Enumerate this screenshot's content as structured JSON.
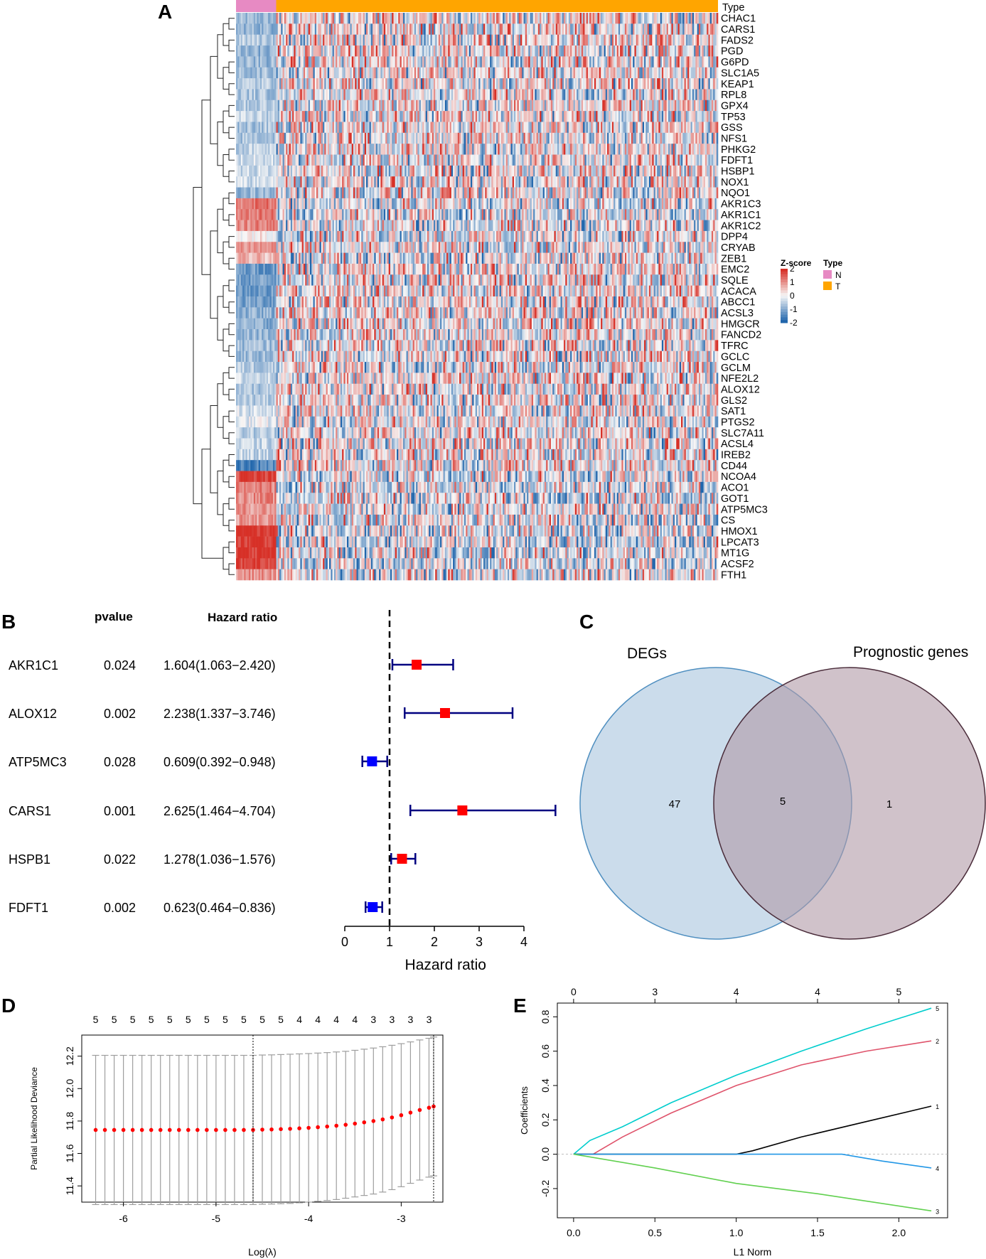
{
  "panels": {
    "A": "A",
    "B": "B",
    "C": "C",
    "D": "D",
    "E": "E"
  },
  "chart_data": [
    {
      "type": "heatmap",
      "panel": "A",
      "title": "",
      "annotation_label": "Type",
      "groups": [
        {
          "name": "N",
          "color": "#e78ac3",
          "n_samples": 25
        },
        {
          "name": "T",
          "color": "#ffa500",
          "n_samples": 275
        }
      ],
      "genes": [
        "CHAC1",
        "CARS1",
        "FADS2",
        "PGD",
        "G6PD",
        "SLC1A5",
        "KEAP1",
        "RPL8",
        "GPX4",
        "TP53",
        "GSS",
        "NFS1",
        "PHKG2",
        "FDFT1",
        "HSBP1",
        "NOX1",
        "NQO1",
        "AKR1C3",
        "AKR1C1",
        "AKR1C2",
        "DPP4",
        "CRYAB",
        "ZEB1",
        "EMC2",
        "SQLE",
        "ACACA",
        "ABCC1",
        "ACSL3",
        "HMGCR",
        "FANCD2",
        "TFRC",
        "GCLC",
        "GCLM",
        "NFE2L2",
        "ALOX12",
        "GLS2",
        "SAT1",
        "PTGS2",
        "SLC7A11",
        "ACSL4",
        "IREB2",
        "CD44",
        "NCOA4",
        "ACO1",
        "GOT1",
        "ATP5MC3",
        "CS",
        "HMOX1",
        "LPCAT3",
        "MT1G",
        "ACSF2",
        "FTH1"
      ],
      "normal_group_mean_z": [
        -0.9,
        -0.9,
        -0.6,
        -1.0,
        -0.9,
        -0.8,
        -0.6,
        -0.7,
        -0.6,
        -0.5,
        -0.7,
        -0.7,
        -0.5,
        -0.4,
        -0.4,
        -0.4,
        -0.9,
        1.3,
        1.2,
        1.1,
        0.2,
        1.0,
        0.6,
        -1.3,
        -1.2,
        -1.3,
        -1.2,
        -1.0,
        -1.0,
        -0.9,
        -0.8,
        -0.8,
        -0.6,
        -0.4,
        -0.7,
        -0.6,
        -0.3,
        -0.2,
        -0.6,
        -0.5,
        -0.5,
        -1.6,
        1.8,
        1.2,
        1.1,
        1.0,
        0.9,
        2.0,
        2.0,
        2.0,
        1.9,
        1.0
      ],
      "color_scale": {
        "title": "Z-score",
        "min": -2,
        "max": 2,
        "ticks": [
          "2",
          "1",
          "0",
          "-1",
          "-2"
        ],
        "low": "#2166ac",
        "mid": "#f7f7f7",
        "high": "#d73027"
      },
      "legend_title": "Type"
    },
    {
      "type": "forest",
      "panel": "B",
      "column_headers": {
        "pvalue": "pvalue",
        "hr": "Hazard ratio"
      },
      "rows": [
        {
          "gene": "AKR1C1",
          "pvalue": "0.024",
          "hr_text": "1.604(1.063−2.420)",
          "hr": 1.604,
          "low": 1.063,
          "high": 2.42,
          "color": "#ff0000"
        },
        {
          "gene": "ALOX12",
          "pvalue": "0.002",
          "hr_text": "2.238(1.337−3.746)",
          "hr": 2.238,
          "low": 1.337,
          "high": 3.746,
          "color": "#ff0000"
        },
        {
          "gene": "ATP5MC3",
          "pvalue": "0.028",
          "hr_text": "0.609(0.392−0.948)",
          "hr": 0.609,
          "low": 0.392,
          "high": 0.948,
          "color": "#0000ff"
        },
        {
          "gene": "CARS1",
          "pvalue": "0.001",
          "hr_text": "2.625(1.464−4.704)",
          "hr": 2.625,
          "low": 1.464,
          "high": 4.704,
          "color": "#ff0000"
        },
        {
          "gene": "HSPB1",
          "pvalue": "0.022",
          "hr_text": "1.278(1.036−1.576)",
          "hr": 1.278,
          "low": 1.036,
          "high": 1.576,
          "color": "#ff0000"
        },
        {
          "gene": "FDFT1",
          "pvalue": "0.002",
          "hr_text": "0.623(0.464−0.836)",
          "hr": 0.623,
          "low": 0.464,
          "high": 0.836,
          "color": "#0000ff"
        }
      ],
      "ci_color": "#000080",
      "xlim": [
        0,
        4
      ],
      "xticks": [
        0,
        1,
        2,
        3,
        4
      ],
      "reference_line": 1,
      "xlabel": "Hazard ratio"
    },
    {
      "type": "venn",
      "panel": "C",
      "sets": [
        {
          "name": "DEGs",
          "only": "47",
          "fill": "#a9c4dd",
          "stroke": "#4f8fc0"
        },
        {
          "name": "Prognostic genes",
          "only": "1",
          "fill": "#b09aa6",
          "stroke": "#4a2c3a"
        }
      ],
      "intersection": "5"
    },
    {
      "type": "scatter",
      "panel": "D",
      "xlabel": "Log(λ)",
      "ylabel": "Partial Likelihood Deviance",
      "xlim": [
        -6.45,
        -2.55
      ],
      "ylim": [
        11.3,
        12.33
      ],
      "xticks": [
        -6,
        -5,
        -4,
        -3
      ],
      "yticks": [
        11.4,
        11.6,
        11.8,
        12.0,
        12.2
      ],
      "top_counts": [
        "5",
        "5",
        "5",
        "5",
        "5",
        "5",
        "5",
        "5",
        "5",
        "5",
        "5",
        "4",
        "4",
        "4",
        "4",
        "3",
        "3",
        "3",
        "3"
      ],
      "top_count_positions": [
        -6.3,
        -6.1,
        -5.9,
        -5.7,
        -5.5,
        -5.3,
        -5.1,
        -4.9,
        -4.7,
        -4.5,
        -4.3,
        -4.1,
        -3.9,
        -3.7,
        -3.5,
        -3.3,
        -3.1,
        -2.9,
        -2.7
      ],
      "log_lambda": [
        -6.3,
        -6.2,
        -6.1,
        -6.0,
        -5.9,
        -5.8,
        -5.7,
        -5.6,
        -5.5,
        -5.4,
        -5.3,
        -5.2,
        -5.1,
        -5.0,
        -4.9,
        -4.8,
        -4.7,
        -4.6,
        -4.5,
        -4.4,
        -4.3,
        -4.2,
        -4.1,
        -4.0,
        -3.9,
        -3.8,
        -3.7,
        -3.6,
        -3.5,
        -3.4,
        -3.3,
        -3.2,
        -3.1,
        -3.0,
        -2.9,
        -2.8,
        -2.7,
        -2.65
      ],
      "deviance": [
        11.745,
        11.745,
        11.745,
        11.745,
        11.745,
        11.745,
        11.745,
        11.745,
        11.745,
        11.745,
        11.745,
        11.745,
        11.745,
        11.745,
        11.745,
        11.745,
        11.745,
        11.745,
        11.747,
        11.748,
        11.75,
        11.752,
        11.755,
        11.758,
        11.762,
        11.766,
        11.771,
        11.777,
        11.784,
        11.792,
        11.8,
        11.81,
        11.822,
        11.836,
        11.852,
        11.868,
        11.882,
        11.89
      ],
      "upper": [
        12.205,
        12.205,
        12.205,
        12.205,
        12.205,
        12.205,
        12.205,
        12.205,
        12.205,
        12.205,
        12.205,
        12.205,
        12.205,
        12.205,
        12.205,
        12.205,
        12.205,
        12.205,
        12.207,
        12.208,
        12.21,
        12.212,
        12.214,
        12.216,
        12.219,
        12.222,
        12.226,
        12.23,
        12.236,
        12.243,
        12.25,
        12.258,
        12.267,
        12.277,
        12.288,
        12.3,
        12.31,
        12.318
      ],
      "lower": [
        11.285,
        11.285,
        11.285,
        11.285,
        11.285,
        11.285,
        11.285,
        11.285,
        11.285,
        11.285,
        11.285,
        11.285,
        11.285,
        11.285,
        11.285,
        11.285,
        11.285,
        11.285,
        11.287,
        11.288,
        11.29,
        11.292,
        11.296,
        11.3,
        11.305,
        11.31,
        11.316,
        11.324,
        11.332,
        11.341,
        11.35,
        11.362,
        11.377,
        11.395,
        11.416,
        11.436,
        11.454,
        11.462
      ],
      "lambda_min": -4.6,
      "lambda_1se": -2.65,
      "point_color": "#ff0000",
      "errorbar_color": "#9e9e9e"
    },
    {
      "type": "line",
      "panel": "E",
      "xlabel": "L1 Norm",
      "ylabel": "Coefficients",
      "xlim": [
        -0.1,
        2.3
      ],
      "ylim": [
        -0.37,
        0.88
      ],
      "xticks": [
        0.0,
        0.5,
        1.0,
        1.5,
        2.0
      ],
      "yticks": [
        -0.2,
        0.0,
        0.2,
        0.4,
        0.6,
        0.8
      ],
      "top_axis": [
        {
          "x": 0.0,
          "label": "0"
        },
        {
          "x": 0.5,
          "label": "3"
        },
        {
          "x": 1.0,
          "label": "4"
        },
        {
          "x": 1.5,
          "label": "4"
        },
        {
          "x": 2.0,
          "label": "5"
        }
      ],
      "series": [
        {
          "name": "5",
          "color": "#00cdcd",
          "x": [
            0.0,
            0.1,
            0.3,
            0.6,
            1.0,
            1.4,
            1.8,
            2.2
          ],
          "y": [
            0.0,
            0.08,
            0.16,
            0.3,
            0.46,
            0.6,
            0.73,
            0.85
          ]
        },
        {
          "name": "2",
          "color": "#df536b",
          "x": [
            0.0,
            0.12,
            0.3,
            0.6,
            1.0,
            1.4,
            1.8,
            2.2
          ],
          "y": [
            0.0,
            0.0,
            0.1,
            0.24,
            0.4,
            0.52,
            0.6,
            0.66
          ]
        },
        {
          "name": "1",
          "color": "#000000",
          "x": [
            0.0,
            1.0,
            1.1,
            1.4,
            1.8,
            2.2
          ],
          "y": [
            0.0,
            0.0,
            0.02,
            0.1,
            0.19,
            0.28
          ]
        },
        {
          "name": "4",
          "color": "#2297e6",
          "x": [
            0.0,
            1.0,
            1.65,
            1.9,
            2.2
          ],
          "y": [
            0.0,
            0.0,
            0.0,
            -0.04,
            -0.08
          ]
        },
        {
          "name": "3",
          "color": "#61d04f",
          "x": [
            0.0,
            0.5,
            1.0,
            1.5,
            2.2
          ],
          "y": [
            0.0,
            -0.08,
            -0.17,
            -0.23,
            -0.33
          ]
        }
      ]
    }
  ]
}
